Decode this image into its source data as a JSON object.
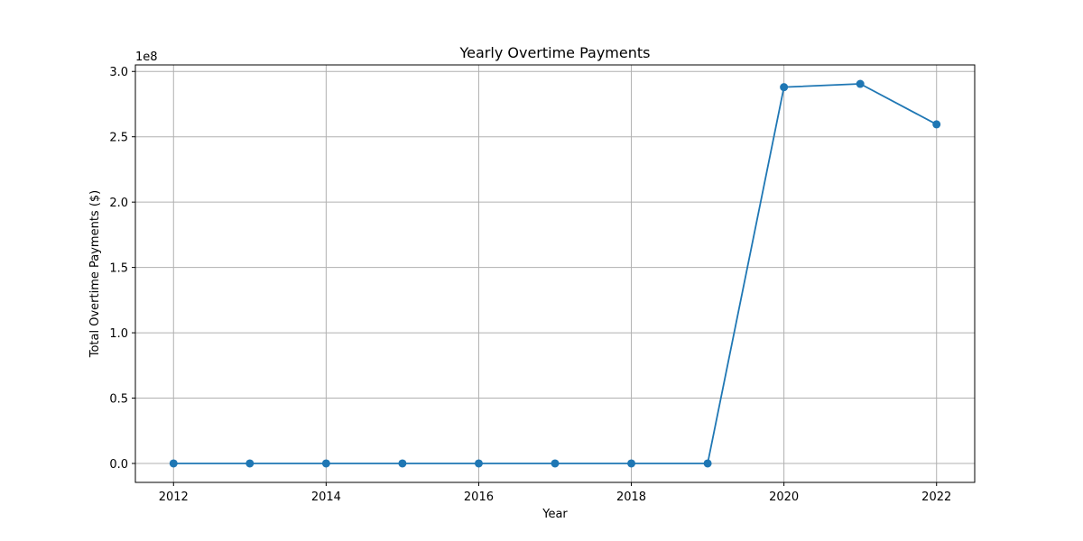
{
  "chart_data": {
    "type": "line",
    "title": "Yearly Overtime Payments",
    "xlabel": "Year",
    "ylabel": "Total Overtime Payments ($)",
    "y_offset_label": "1e8",
    "x": [
      2012,
      2013,
      2014,
      2015,
      2016,
      2017,
      2018,
      2019,
      2020,
      2021,
      2022
    ],
    "series": [
      {
        "values": [
          0,
          0,
          0,
          0,
          0,
          0,
          0,
          0,
          288000000,
          290500000,
          259500000
        ],
        "color": "#1f77b4",
        "marker": "circle"
      }
    ],
    "xlim": [
      2011.5,
      2022.5
    ],
    "ylim": [
      -14500000,
      305000000
    ],
    "x_ticks": [
      2012,
      2014,
      2016,
      2018,
      2020,
      2022
    ],
    "x_tick_labels": [
      "2012",
      "2014",
      "2016",
      "2018",
      "2020",
      "2022"
    ],
    "y_ticks": [
      0,
      50000000,
      100000000,
      150000000,
      200000000,
      250000000,
      300000000
    ],
    "y_tick_labels": [
      "0.0",
      "0.5",
      "1.0",
      "1.5",
      "2.0",
      "2.5",
      "3.0"
    ],
    "grid": true,
    "grid_color": "#b0b0b0"
  }
}
